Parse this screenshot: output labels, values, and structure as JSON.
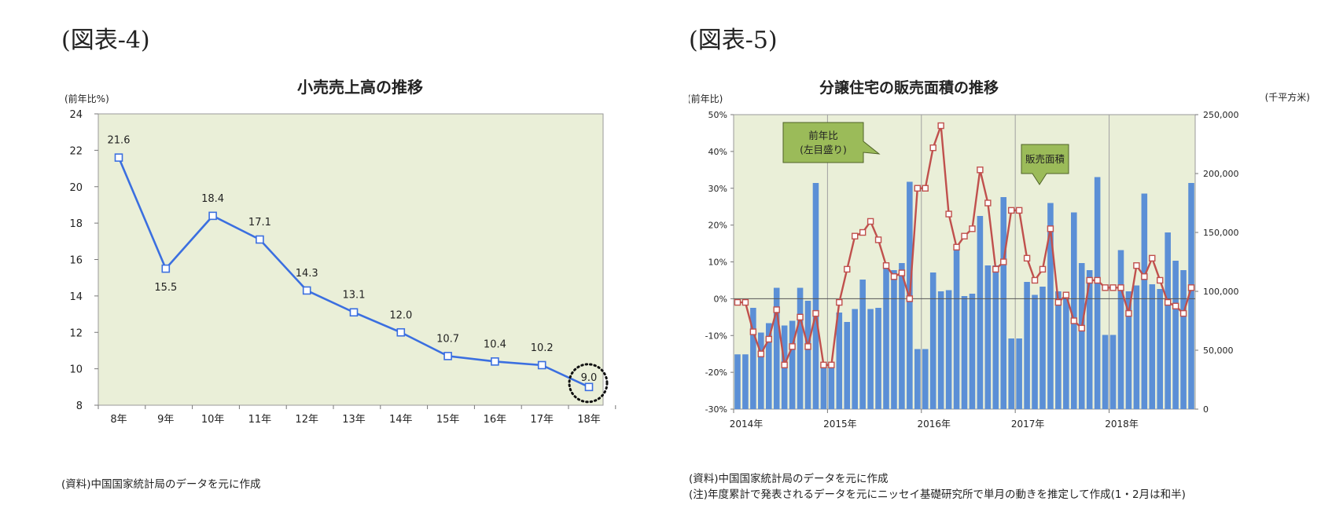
{
  "figure4": {
    "label": "(図表-4)",
    "source": "(資料)中国国家統計局のデータを元に作成",
    "chart_data": {
      "type": "line",
      "title": "小売売上高の推移",
      "ylabel": "(前年比%)",
      "xlabel": "",
      "categories": [
        "8年",
        "9年",
        "10年",
        "11年",
        "12年",
        "13年",
        "14年",
        "15年",
        "16年",
        "17年",
        "18年"
      ],
      "values": [
        21.6,
        15.5,
        18.4,
        17.1,
        14.3,
        13.1,
        12.0,
        10.7,
        10.4,
        10.2,
        9.0
      ],
      "value_labels": [
        "21.6",
        "15.5",
        "18.4",
        "17.1",
        "14.3",
        "13.1",
        "12.0",
        "10.7",
        "10.4",
        "10.2",
        "9.0"
      ],
      "ylim": [
        8,
        24
      ],
      "yticks": [
        "8",
        "10",
        "12",
        "14",
        "16",
        "18",
        "20",
        "22",
        "24"
      ],
      "grid": false,
      "line_color": "#3b6fe0",
      "plot_bg": "#eaefd8",
      "highlight_index": 10
    }
  },
  "figure5": {
    "label": "(図表-5)",
    "source": "(資料)中国国家統計局のデータを元に作成",
    "note": "(注)年度累計で発表されるデータを元にニッセイ基礎研究所で単月の動きを推定して作成(1・2月は和半)",
    "chart_data": {
      "type": "bar",
      "title": "分譲住宅の販売面積の推移",
      "ylabel_left": "(前年比)",
      "ylabel_right": "(千平方米)",
      "xlabel": "",
      "x_year_labels": [
        "2014年",
        "2015年",
        "2016年",
        "2017年",
        "2018年"
      ],
      "ylim_left": [
        -30,
        50
      ],
      "ylim_right": [
        0,
        250000
      ],
      "left_ticks": [
        "50%",
        "40%",
        "30%",
        "20%",
        "10%",
        "0%",
        "-10%",
        "-20%",
        "-30%"
      ],
      "right_ticks": [
        "250,000",
        "200,000",
        "150,000",
        "100,000",
        "50,000",
        "0"
      ],
      "callout_line": "前年比\n(左目盛り)",
      "callout_bar": "販売面積",
      "bar_color": "#5b8fd6",
      "line_color": "#c0504d",
      "plot_bg": "#eaefd8",
      "series": [
        {
          "name": "販売面積",
          "axis": "right",
          "values": [
            46500,
            46500,
            86000,
            65000,
            73000,
            103000,
            71000,
            75000,
            103000,
            92000,
            192000,
            40000,
            40000,
            82000,
            74000,
            85000,
            110000,
            85000,
            86000,
            122000,
            118000,
            124000,
            193000,
            51000,
            51000,
            116000,
            100000,
            101000,
            138000,
            96000,
            98000,
            164000,
            122000,
            122000,
            180000,
            60000,
            60000,
            108000,
            97000,
            104000,
            175000,
            100000,
            96000,
            167000,
            124000,
            118000,
            197000,
            63000,
            63000,
            135000,
            100000,
            105000,
            183000,
            106000,
            102000,
            150000,
            126000,
            118000,
            192000
          ]
        },
        {
          "name": "前年比",
          "axis": "left",
          "values": [
            -1,
            -1,
            -9,
            -15,
            -11,
            -3,
            -18,
            -13,
            -5,
            -13,
            -4,
            -18,
            -18,
            -1,
            8,
            17,
            18,
            21,
            16,
            9,
            6,
            7,
            0,
            30,
            30,
            41,
            47,
            23,
            14,
            17,
            19,
            35,
            26,
            8,
            10,
            24,
            24,
            11,
            5,
            8,
            19,
            -1,
            1,
            -6,
            -8,
            5,
            5,
            3,
            3,
            3,
            -4,
            9,
            6,
            11,
            5,
            -1,
            -2,
            -4,
            3
          ]
        }
      ]
    }
  }
}
